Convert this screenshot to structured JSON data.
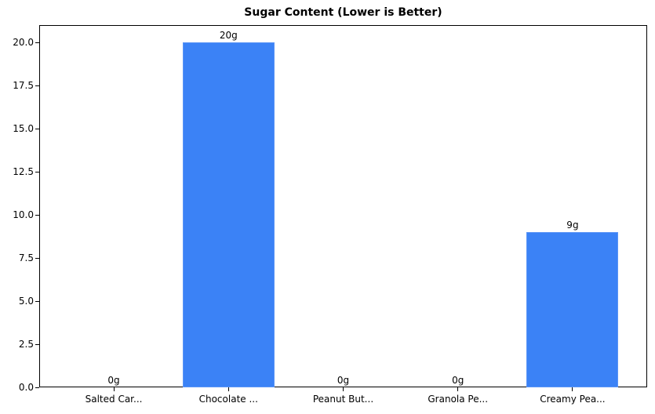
{
  "chart_data": {
    "type": "bar",
    "title": "Sugar Content (Lower is Better)",
    "xlabel": "",
    "ylabel": "",
    "categories": [
      "Salted Car...",
      "Chocolate ...",
      "Peanut But...",
      "Granola Pe...",
      "Creamy Pea..."
    ],
    "values": [
      0,
      20,
      0,
      0,
      9
    ],
    "value_labels": [
      "0g",
      "20g",
      "0g",
      "0g",
      "9g"
    ],
    "ylim": [
      0,
      21
    ],
    "yticks": [
      0.0,
      2.5,
      5.0,
      7.5,
      10.0,
      12.5,
      15.0,
      17.5,
      20.0
    ],
    "ytick_labels": [
      "0.0",
      "2.5",
      "5.0",
      "7.5",
      "10.0",
      "12.5",
      "15.0",
      "17.5",
      "20.0"
    ],
    "grid": false,
    "legend": null,
    "bar_color": "#3b82f6"
  }
}
